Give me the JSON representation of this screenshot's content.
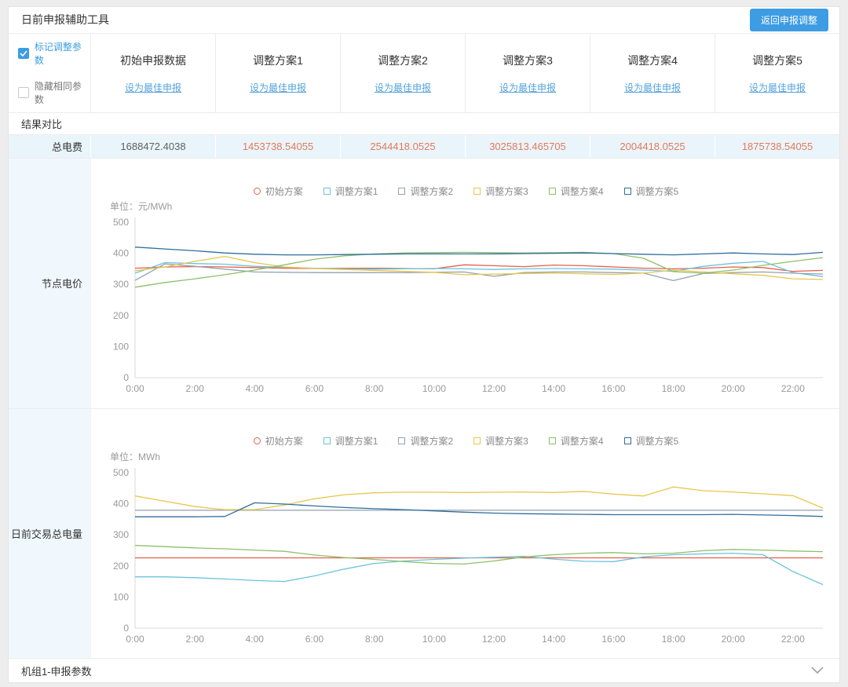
{
  "panel": {
    "title": "日前申报辅助工具",
    "back_button_label": "返回申报调整"
  },
  "controls": {
    "mark_adjust_label": "标记调整参数",
    "mark_adjust_checked": true,
    "hide_same_label": "隐藏相同参数",
    "hide_same_checked": false
  },
  "columns": [
    {
      "name": "初始申报数据",
      "link": "设为最佳申报"
    },
    {
      "name": "调整方案1",
      "link": "设为最佳申报"
    },
    {
      "name": "调整方案2",
      "link": "设为最佳申报"
    },
    {
      "name": "调整方案3",
      "link": "设为最佳申报"
    },
    {
      "name": "调整方案4",
      "link": "设为最佳申报"
    },
    {
      "name": "调整方案5",
      "link": "设为最佳申报"
    }
  ],
  "result": {
    "section_title": "结果对比",
    "row_label": "总电费",
    "values": [
      "1688472.4038",
      "1453738.54055",
      "2544418.0525",
      "3025813.465705",
      "2004418.0525",
      "1875738.54055"
    ]
  },
  "chart_rows": [
    {
      "label": "节点电价"
    },
    {
      "label": "日前交易总电量"
    }
  ],
  "bottom_bar": {
    "title": "机组1-申报参数"
  },
  "icons": {
    "checkbox_check": "check",
    "collapse": "chevron-down"
  },
  "colors": {
    "accent_blue": "#3a9ee0",
    "button_blue": "#3d9ce3",
    "link_blue": "#56a3db",
    "adjust_value_red": "#e4795a",
    "result_row_bg": "#eaf5fb",
    "sidebar_cell_bg": "#f1f8fd"
  },
  "chart_data": [
    {
      "type": "line",
      "title": "节点电价",
      "unit_label": "单位：元/MWh",
      "x_hours": [
        0,
        1,
        2,
        3,
        4,
        5,
        6,
        7,
        8,
        9,
        10,
        11,
        12,
        13,
        14,
        15,
        16,
        17,
        18,
        19,
        20,
        21,
        22,
        23
      ],
      "x_tick_labels": [
        "0:00",
        "2:00",
        "4:00",
        "6:00",
        "8:00",
        "10:00",
        "12:00",
        "14:00",
        "16:00",
        "18:00",
        "20:00",
        "22:00"
      ],
      "ylim": [
        0,
        500
      ],
      "yticks": [
        0,
        100,
        200,
        300,
        400,
        500
      ],
      "grid": false,
      "legend_position": "top-center",
      "series": [
        {
          "name": "初始方案",
          "color": "#e2604c",
          "marker": "circle",
          "values": [
            352,
            356,
            357,
            356,
            354,
            352,
            351,
            352,
            352,
            351,
            350,
            363,
            360,
            357,
            362,
            360,
            356,
            352,
            350,
            352,
            356,
            354,
            342,
            345
          ]
        },
        {
          "name": "调整方案1",
          "color": "#6bc3dd",
          "marker": "square",
          "values": [
            336,
            370,
            367,
            365,
            358,
            355,
            352,
            350,
            349,
            350,
            351,
            350,
            348,
            350,
            351,
            350,
            349,
            346,
            342,
            358,
            368,
            374,
            338,
            325
          ]
        },
        {
          "name": "调整方案2",
          "color": "#93a2b0",
          "marker": "square",
          "values": [
            313,
            366,
            358,
            349,
            340,
            339,
            338,
            338,
            338,
            338,
            339,
            340,
            326,
            338,
            340,
            340,
            338,
            336,
            312,
            335,
            338,
            340,
            336,
            333
          ]
        },
        {
          "name": "调整方案3",
          "color": "#e8c64b",
          "marker": "square",
          "values": [
            344,
            356,
            374,
            390,
            370,
            356,
            351,
            348,
            345,
            342,
            339,
            331,
            333,
            335,
            336,
            334,
            332,
            336,
            346,
            340,
            334,
            329,
            318,
            316
          ]
        },
        {
          "name": "调整方案4",
          "color": "#8fbf6a",
          "marker": "square",
          "values": [
            291,
            306,
            318,
            331,
            346,
            363,
            381,
            392,
            398,
            401,
            402,
            403,
            402,
            401,
            402,
            403,
            399,
            384,
            341,
            336,
            346,
            361,
            374,
            386
          ]
        },
        {
          "name": "调整方案5",
          "color": "#2f6e9e",
          "marker": "square",
          "values": [
            420,
            414,
            408,
            401,
            397,
            395,
            395,
            396,
            397,
            398,
            398,
            398,
            398,
            399,
            400,
            401,
            399,
            397,
            395,
            398,
            401,
            398,
            396,
            403
          ]
        }
      ]
    },
    {
      "type": "line",
      "title": "日前交易总电量",
      "unit_label": "单位：MWh",
      "x_hours": [
        0,
        1,
        2,
        3,
        4,
        5,
        6,
        7,
        8,
        9,
        10,
        11,
        12,
        13,
        14,
        15,
        16,
        17,
        18,
        19,
        20,
        21,
        22,
        23
      ],
      "x_tick_labels": [
        "0:00",
        "2:00",
        "4:00",
        "6:00",
        "8:00",
        "10:00",
        "12:00",
        "14:00",
        "16:00",
        "18:00",
        "20:00",
        "22:00"
      ],
      "ylim": [
        0,
        500
      ],
      "yticks": [
        0,
        100,
        200,
        300,
        400,
        500
      ],
      "grid": false,
      "legend_position": "top-center",
      "series": [
        {
          "name": "初始方案",
          "color": "#e2604c",
          "marker": "circle",
          "values": [
            226,
            226,
            226,
            226,
            226,
            226,
            226,
            226,
            226,
            226,
            226,
            226,
            226,
            226,
            226,
            226,
            226,
            226,
            226,
            226,
            226,
            226,
            226,
            226
          ]
        },
        {
          "name": "调整方案1",
          "color": "#6bc3dd",
          "marker": "square",
          "values": [
            165,
            165,
            162,
            158,
            153,
            150,
            168,
            190,
            208,
            216,
            221,
            225,
            228,
            231,
            222,
            215,
            214,
            229,
            236,
            239,
            241,
            236,
            182,
            140
          ]
        },
        {
          "name": "调整方案2",
          "color": "#93a2b0",
          "marker": "square",
          "values": [
            379,
            379,
            379,
            379,
            379,
            379,
            379,
            379,
            379,
            379,
            379,
            379,
            379,
            379,
            379,
            379,
            379,
            379,
            379,
            379,
            379,
            379,
            379,
            379
          ]
        },
        {
          "name": "调整方案3",
          "color": "#e8c64b",
          "marker": "square",
          "values": [
            425,
            408,
            391,
            381,
            381,
            396,
            416,
            429,
            435,
            437,
            437,
            436,
            437,
            438,
            436,
            440,
            431,
            425,
            454,
            442,
            438,
            432,
            426,
            386
          ]
        },
        {
          "name": "调整方案4",
          "color": "#8fbf6a",
          "marker": "square",
          "values": [
            266,
            262,
            258,
            255,
            251,
            247,
            235,
            227,
            221,
            214,
            208,
            206,
            216,
            229,
            236,
            241,
            243,
            239,
            241,
            249,
            253,
            251,
            248,
            246
          ]
        },
        {
          "name": "调整方案5",
          "color": "#2f6e9e",
          "marker": "square",
          "values": [
            358,
            358,
            358,
            359,
            403,
            399,
            393,
            388,
            384,
            381,
            377,
            373,
            370,
            368,
            367,
            366,
            365,
            365,
            365,
            365,
            366,
            364,
            362,
            359
          ]
        }
      ]
    }
  ]
}
